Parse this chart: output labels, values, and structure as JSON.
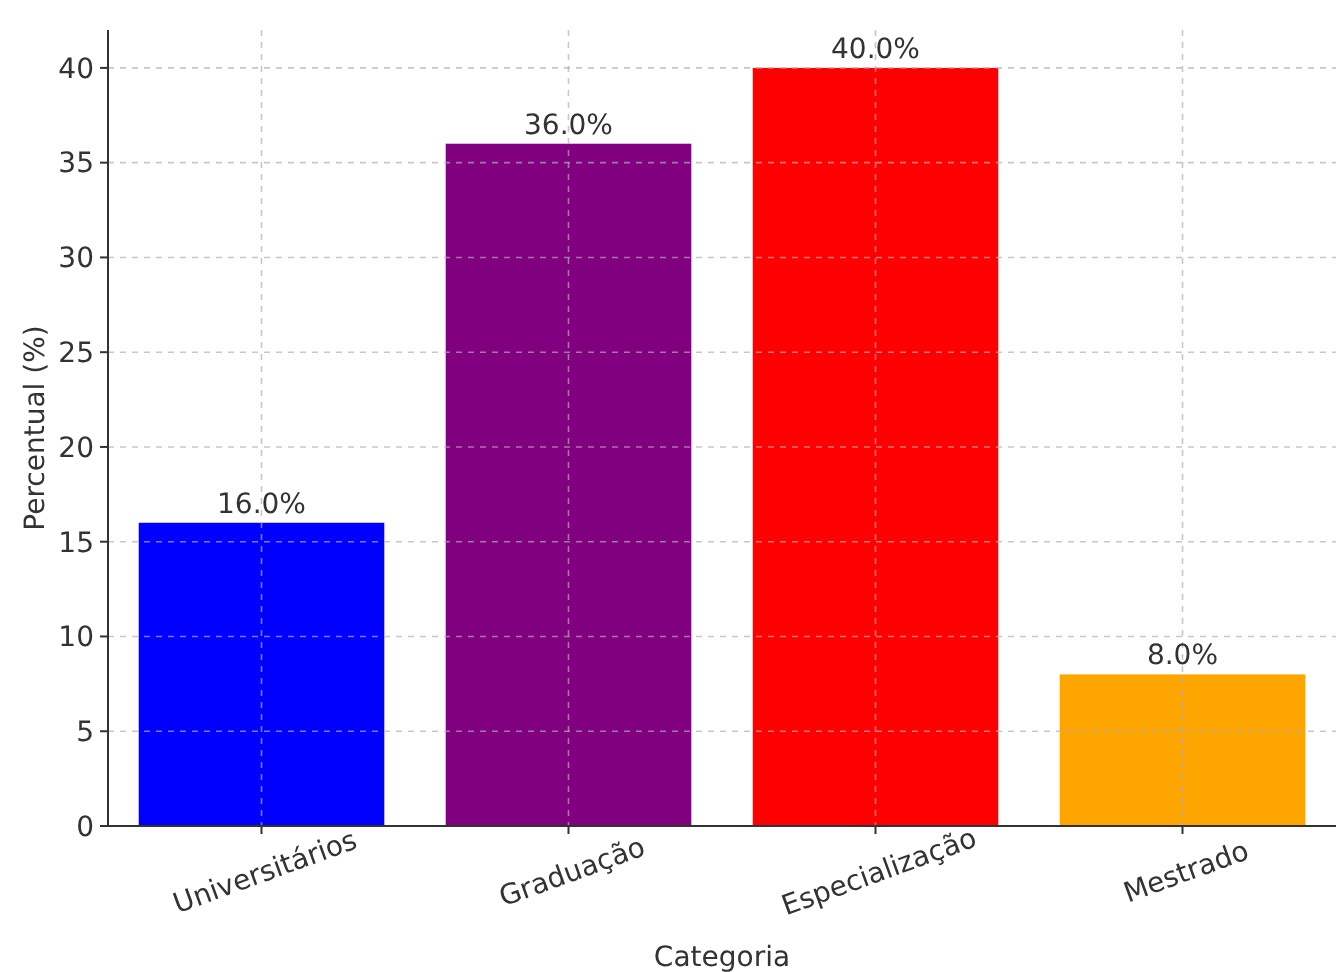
{
  "chart_data": {
    "type": "bar",
    "xlabel": "Categoria",
    "ylabel": "Percentual (%)",
    "categories": [
      "Universitários",
      "Graduação",
      "Especialização",
      "Mestrado"
    ],
    "values": [
      16,
      36,
      40,
      8
    ],
    "colors": [
      "#0000ff",
      "#800080",
      "#ff0000",
      "#ffa500"
    ],
    "value_labels": [
      "16.0%",
      "36.0%",
      "40.0%",
      "8.0%"
    ],
    "ylim": [
      0,
      42
    ],
    "yticks": [
      0,
      5,
      10,
      15,
      20,
      25,
      30,
      35,
      40
    ],
    "grid": true
  }
}
